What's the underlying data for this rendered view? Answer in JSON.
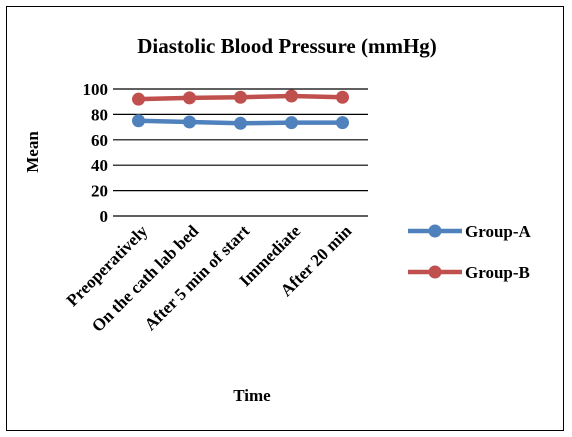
{
  "chart_data": {
    "type": "line",
    "title": "Diastolic Blood Pressure (mmHg)",
    "xlabel": "Time",
    "ylabel": "Mean",
    "ylim": [
      0,
      100
    ],
    "yticks": [
      "0",
      "20",
      "40",
      "60",
      "80",
      "100"
    ],
    "categories": [
      "Preoperatively",
      "On the cath lab bed",
      "After 5 min of start",
      "Immediate",
      "After 20 min"
    ],
    "series": [
      {
        "name": "Group-A",
        "color": "#4F81BD",
        "values": [
          75,
          74,
          73,
          73.5,
          73.5
        ]
      },
      {
        "name": "Group-B",
        "color": "#C0504D",
        "values": [
          92,
          93,
          93.5,
          94.5,
          93.5
        ]
      }
    ],
    "grid": true,
    "legend_position": "right"
  }
}
